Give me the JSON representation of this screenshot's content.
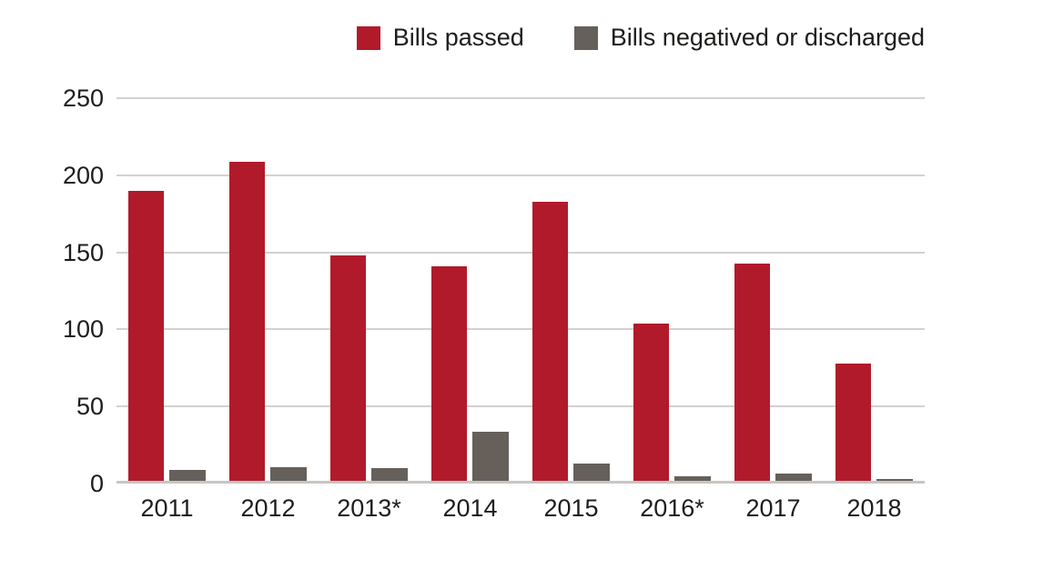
{
  "chart_data": {
    "type": "bar",
    "title": "",
    "xlabel": "",
    "ylabel": "",
    "categories": [
      "2011",
      "2012",
      "2013*",
      "2014",
      "2015",
      "2016*",
      "2017",
      "2018"
    ],
    "series": [
      {
        "name": "Bills passed",
        "color": "#b11a2b",
        "values": [
          188,
          207,
          146,
          139,
          181,
          102,
          141,
          76
        ]
      },
      {
        "name": "Bills negatived or discharged",
        "color": "#66605b",
        "values": [
          7,
          9,
          8,
          32,
          11,
          3,
          5,
          1
        ]
      }
    ],
    "ylim": [
      0,
      250
    ],
    "yticks": [
      0,
      50,
      100,
      150,
      200,
      250
    ],
    "grid": true,
    "legend_position": "top-right",
    "colors": {
      "background": "#ffffff",
      "gridline": "#d4d1cf",
      "baseline": "#c8c5c3",
      "text": "#1d1d1b"
    }
  }
}
